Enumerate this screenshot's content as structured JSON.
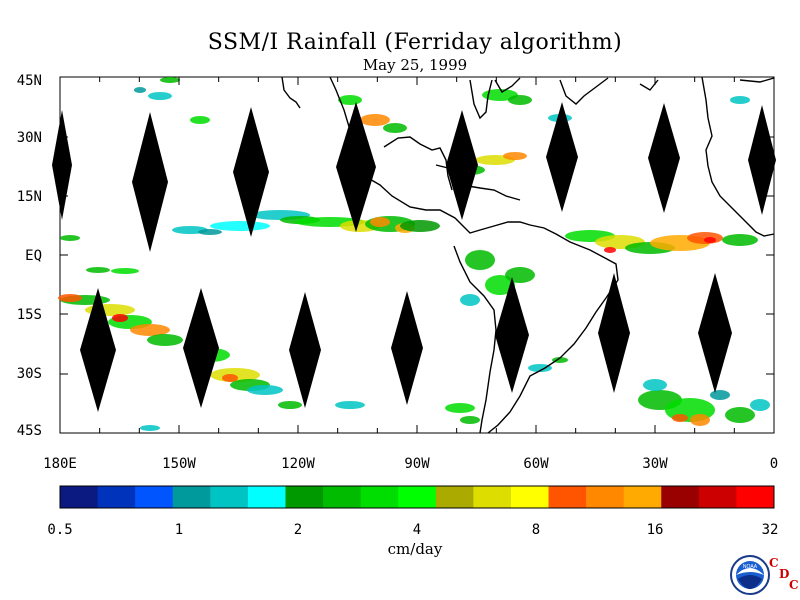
{
  "title": "SSM/I Rainfall (Ferriday algorithm)",
  "subtitle": "May 25, 1999",
  "lat_labels": [
    "45N",
    "30N",
    "15N",
    "EQ",
    "15S",
    "30S",
    "45S"
  ],
  "lon_labels": [
    "180E",
    "150W",
    "120W",
    "90W",
    "60W",
    "30W",
    "0"
  ],
  "colorbar": {
    "colors": [
      "#0a1a80",
      "#0033bb",
      "#0055ff",
      "#00999c",
      "#00c4c4",
      "#00ffff",
      "#009900",
      "#00bb00",
      "#00dd00",
      "#00ff00",
      "#aaaa00",
      "#dddd00",
      "#ffff00",
      "#ff5500",
      "#ff8800",
      "#ffaa00",
      "#990000",
      "#cc0000",
      "#ff0000"
    ],
    "tick_labels": [
      "0.5",
      "1",
      "2",
      "4",
      "8",
      "16",
      "32"
    ],
    "units": "cm/day"
  },
  "logo": {
    "text": "NOAA",
    "cdc_letters": [
      "C",
      "D",
      "C"
    ]
  }
}
